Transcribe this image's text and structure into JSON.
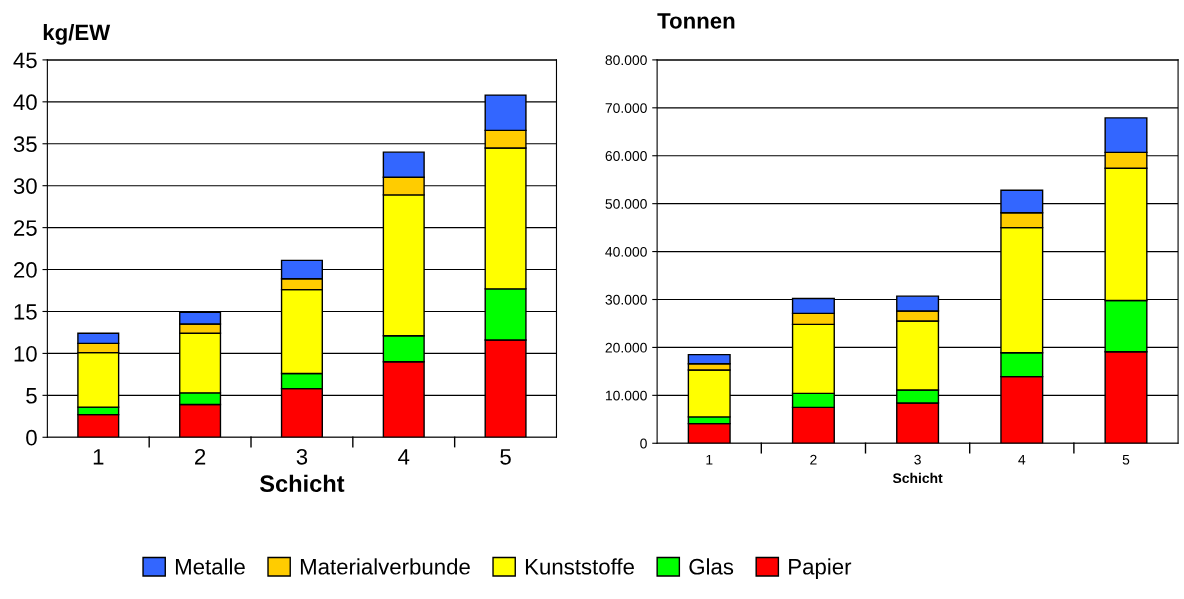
{
  "chart_data": [
    {
      "type": "bar",
      "stacked": true,
      "ylabel": "kg/EW",
      "xlabel": "Schicht",
      "categories": [
        "1",
        "2",
        "3",
        "4",
        "5"
      ],
      "ylim": [
        0,
        45
      ],
      "yticks": [
        0,
        5,
        10,
        15,
        20,
        25,
        30,
        35,
        40,
        45
      ],
      "grid": "y",
      "legend": "bottom",
      "series": [
        {
          "name": "Papier",
          "color": "#ff0000",
          "values": [
            2.7,
            3.9,
            5.8,
            9.0,
            11.6
          ]
        },
        {
          "name": "Glas",
          "color": "#00ff00",
          "values": [
            0.9,
            1.4,
            1.8,
            3.1,
            6.1
          ]
        },
        {
          "name": "Kunststoffe",
          "color": "#ffff00",
          "values": [
            6.5,
            7.1,
            10.0,
            16.8,
            16.8
          ]
        },
        {
          "name": "Materialverbunde",
          "color": "#ffcc00",
          "values": [
            1.1,
            1.1,
            1.3,
            2.1,
            2.1
          ]
        },
        {
          "name": "Metalle",
          "color": "#3366ff",
          "values": [
            1.2,
            1.4,
            2.2,
            3.0,
            4.2
          ]
        }
      ]
    },
    {
      "type": "bar",
      "stacked": true,
      "ylabel": "Tonnen",
      "xlabel": "Schicht",
      "categories": [
        "1",
        "2",
        "3",
        "4",
        "5"
      ],
      "ylim": [
        0,
        80000
      ],
      "yticks": [
        0,
        {
          "value": 10000,
          "label": "10.000"
        },
        {
          "value": 20000,
          "label": "20.000"
        },
        {
          "value": 30000,
          "label": "30.000"
        },
        {
          "value": 40000,
          "label": "40.000"
        },
        {
          "value": 50000,
          "label": "50.000"
        },
        {
          "value": 60000,
          "label": "60.000"
        },
        {
          "value": 70000,
          "label": "70.000"
        },
        {
          "value": 80000,
          "label": "80.000"
        }
      ],
      "grid": "y",
      "series": [
        {
          "color": "#ff0000",
          "values": [
            4100,
            7500,
            8400,
            13900,
            19100
          ]
        },
        {
          "color": "#00ff00",
          "values": [
            1400,
            2900,
            2700,
            5000,
            10700
          ]
        },
        {
          "color": "#ffff00",
          "values": [
            9800,
            14400,
            14400,
            26100,
            27600
          ]
        },
        {
          "color": "#ffcc00",
          "values": [
            1300,
            2300,
            2100,
            3100,
            3300
          ]
        },
        {
          "color": "#3366ff",
          "values": [
            1900,
            3100,
            3100,
            4700,
            7200
          ]
        }
      ]
    }
  ]
}
